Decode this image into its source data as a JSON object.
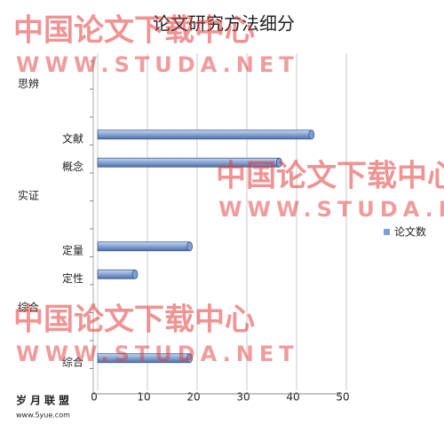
{
  "chart_data": {
    "type": "bar",
    "orientation": "horizontal",
    "title": "论文研究方法细分",
    "categories": [
      "思辨",
      null,
      "文献",
      "概念",
      "实证",
      null,
      "定量",
      "定性",
      "综合",
      null,
      "综合"
    ],
    "series": [
      {
        "name": "论文数",
        "color": "#7f9fd4",
        "values": [
          null,
          null,
          43,
          36.5,
          null,
          null,
          18.5,
          7.5,
          null,
          null,
          18.5
        ]
      }
    ],
    "xlim": [
      0,
      50
    ],
    "xticks": [
      0,
      10,
      20,
      30,
      40,
      50
    ],
    "grid": true,
    "legend": "right"
  },
  "watermarks": [
    "中国论文下载中心",
    "WWW.STUDA.NET"
  ],
  "footer": {
    "brand": "岁月联盟",
    "url": "www.5yue.com"
  }
}
